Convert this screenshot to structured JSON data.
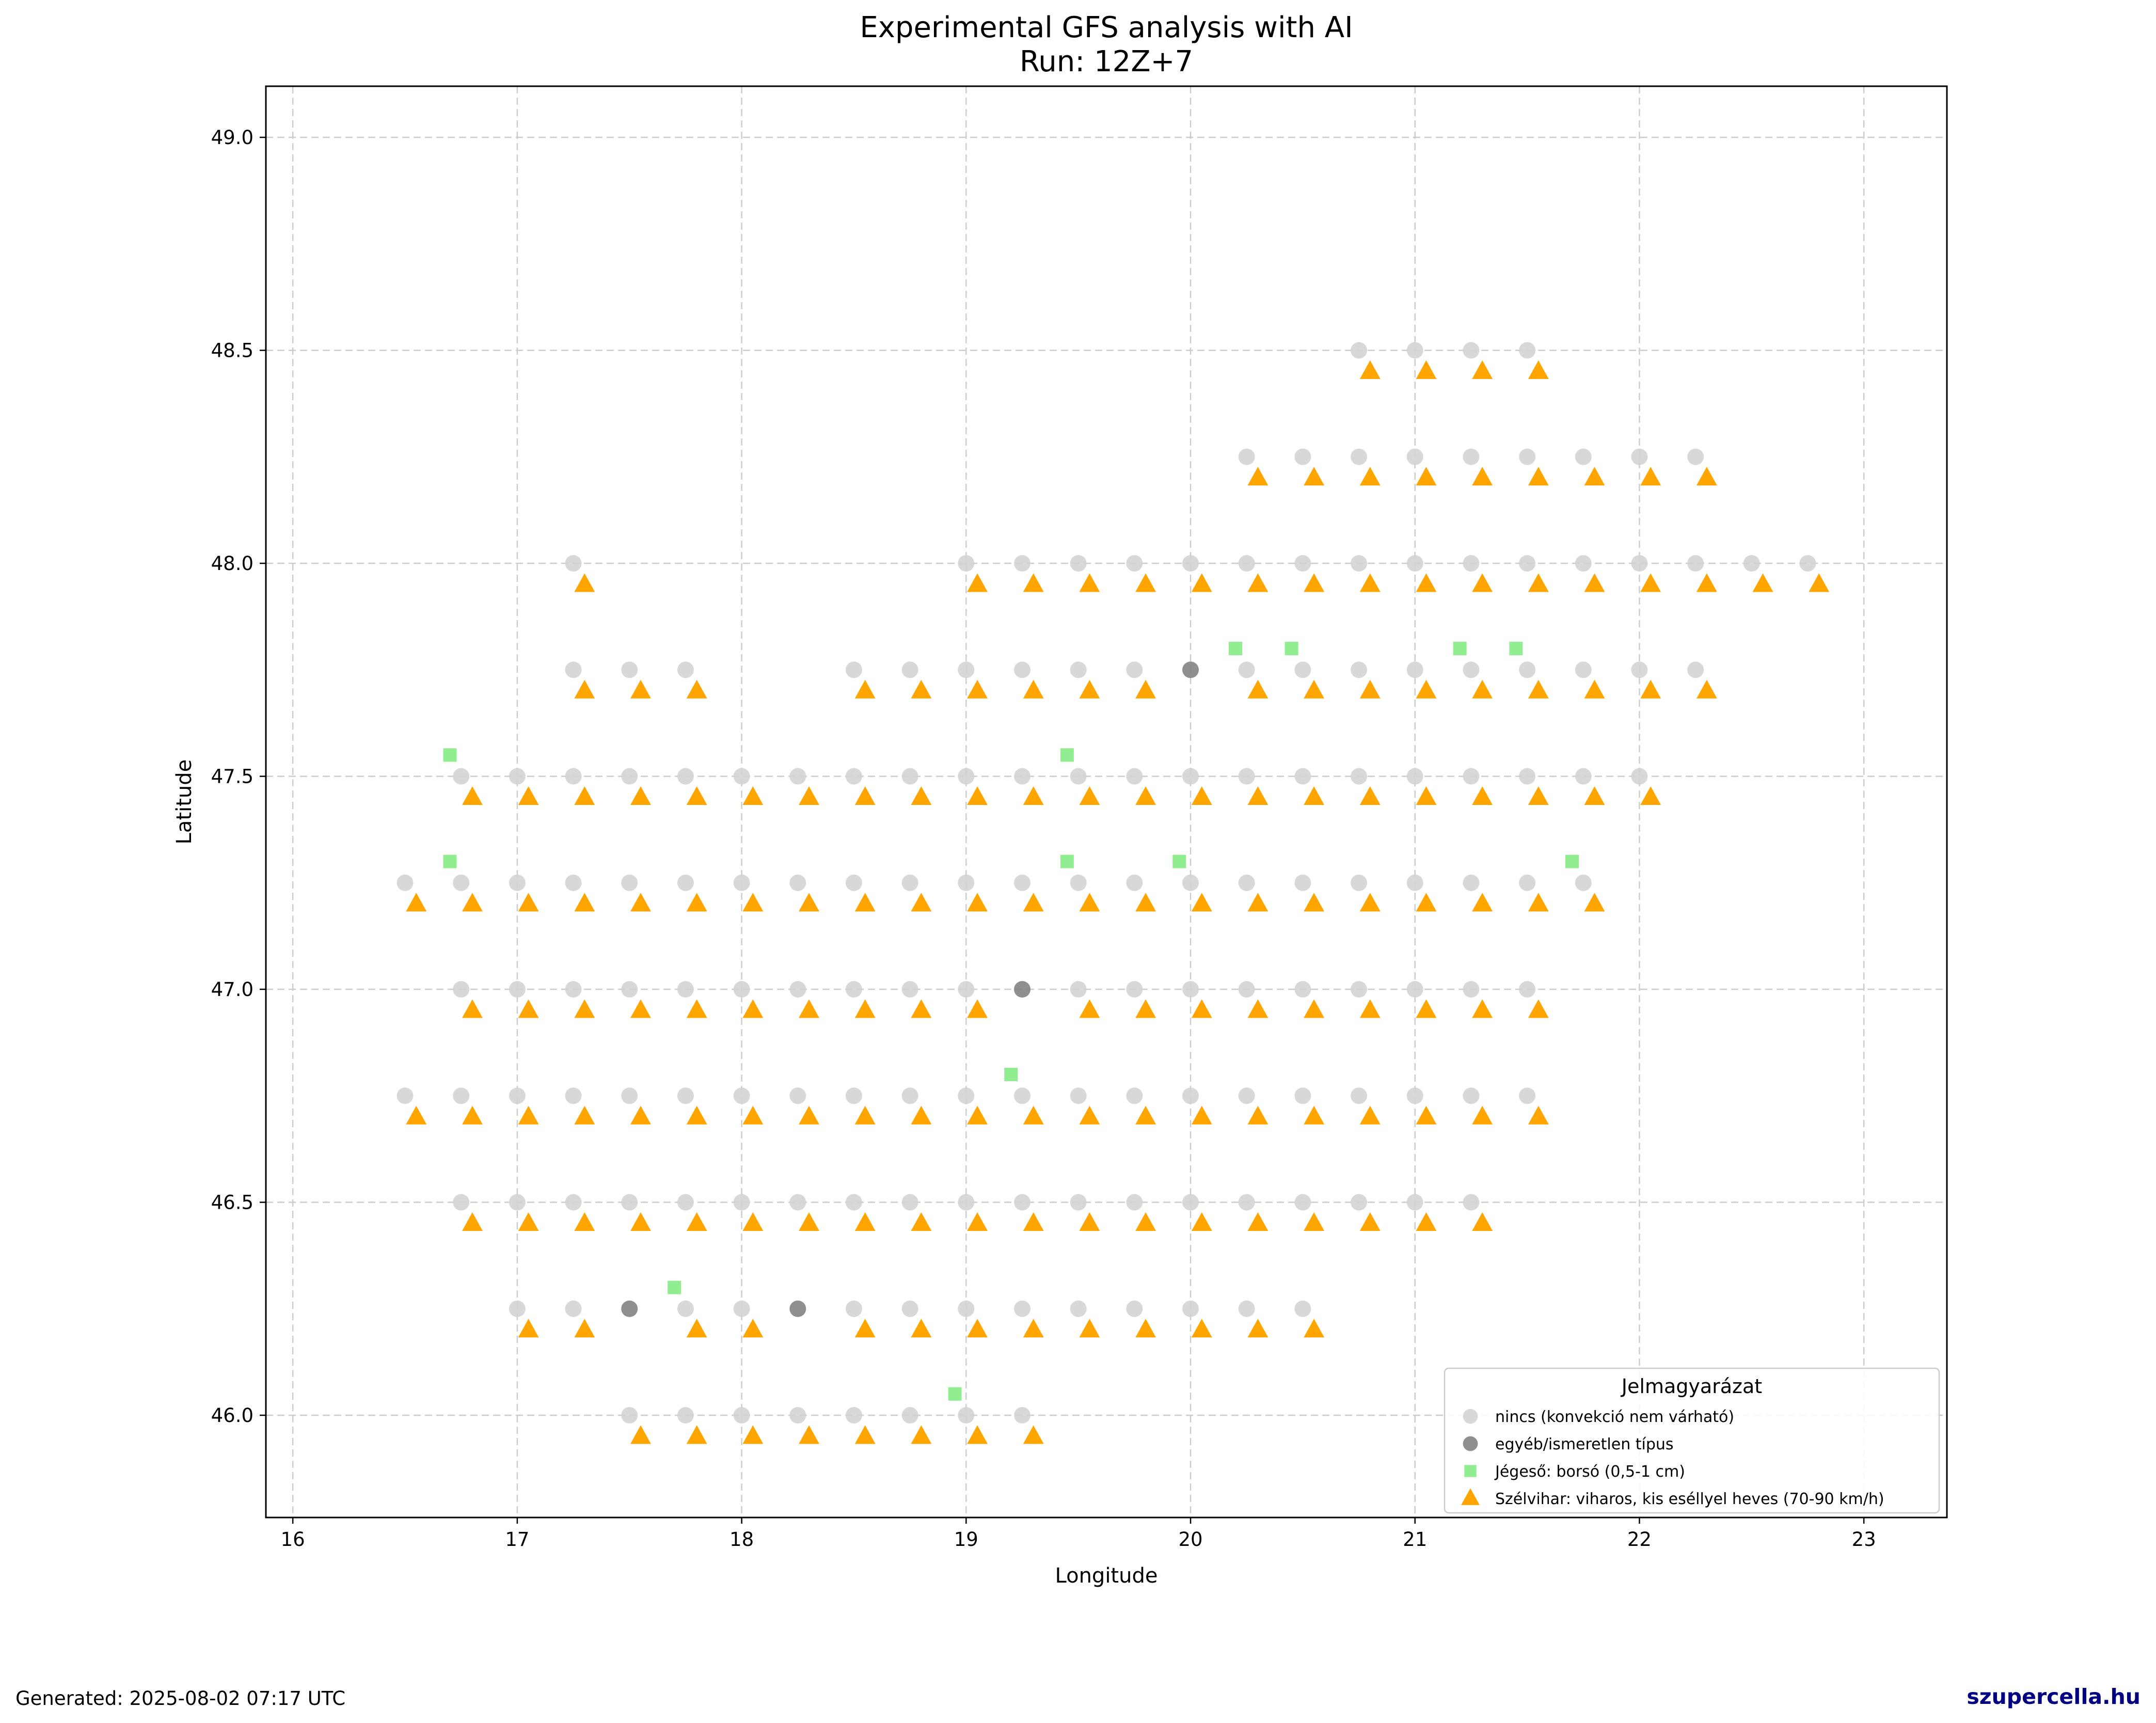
{
  "chart_data": {
    "type": "scatter",
    "title": "Experimental GFS analysis with AI",
    "subtitle": "Run: 12Z+7",
    "xlabel": "Longitude",
    "ylabel": "Latitude",
    "xlim": [
      15.88,
      23.37
    ],
    "ylim": [
      45.76,
      49.12
    ],
    "x_ticks": [
      "16",
      "17",
      "18",
      "19",
      "20",
      "21",
      "22",
      "23"
    ],
    "y_ticks": [
      "46.0",
      "46.5",
      "47.0",
      "47.5",
      "48.0",
      "48.5",
      "49.0"
    ],
    "grid": true,
    "legend": {
      "title": "Jelmagyarázat",
      "location": "lower right",
      "entries": [
        {
          "label": "nincs (konvekció nem várható)",
          "color": "#d3d3d3",
          "marker": "circle"
        },
        {
          "label": "egyéb/ismeretlen típus",
          "color": "#808080",
          "marker": "circle"
        },
        {
          "label": "Jégeső: borsó (0,5-1 cm)",
          "color": "#90ee90",
          "marker": "square"
        },
        {
          "label": "Szélvihar: viharos, kis eséllyel heves (70-90 km/h)",
          "color": "#ffa500",
          "marker": "triangle"
        }
      ]
    },
    "series": [
      {
        "name": "nincs (konvekció nem várható)",
        "color": "#d3d3d3",
        "marker": "circle",
        "rows": [
          {
            "lat": 48.5,
            "lons": [
              20.75,
              21.0,
              21.25,
              21.5
            ]
          },
          {
            "lat": 48.25,
            "lons": [
              20.25,
              20.5,
              20.75,
              21.0,
              21.25,
              21.5,
              21.75,
              22.0,
              22.25
            ]
          },
          {
            "lat": 48.0,
            "lons": [
              17.25,
              19.0,
              19.25,
              19.5,
              19.75,
              20.0,
              20.25,
              20.5,
              20.75,
              21.0,
              21.25,
              21.5,
              21.75,
              22.0,
              22.25,
              22.5,
              22.75
            ]
          },
          {
            "lat": 47.75,
            "lons": [
              17.25,
              17.5,
              17.75,
              18.5,
              18.75,
              19.0,
              19.25,
              19.5,
              19.75,
              20.25,
              20.5,
              20.75,
              21.0,
              21.25,
              21.5,
              21.75,
              22.0,
              22.25
            ]
          },
          {
            "lat": 47.5,
            "lons": [
              16.75,
              17.0,
              17.25,
              17.5,
              17.75,
              18.0,
              18.25,
              18.5,
              18.75,
              19.0,
              19.25,
              19.5,
              19.75,
              20.0,
              20.25,
              20.5,
              20.75,
              21.0,
              21.25,
              21.5,
              21.75,
              22.0
            ]
          },
          {
            "lat": 47.25,
            "lons": [
              16.5,
              16.75,
              17.0,
              17.25,
              17.5,
              17.75,
              18.0,
              18.25,
              18.5,
              18.75,
              19.0,
              19.25,
              19.5,
              19.75,
              20.0,
              20.25,
              20.5,
              20.75,
              21.0,
              21.25,
              21.5,
              21.75
            ]
          },
          {
            "lat": 47.0,
            "lons": [
              16.75,
              17.0,
              17.25,
              17.5,
              17.75,
              18.0,
              18.25,
              18.5,
              18.75,
              19.0,
              19.5,
              19.75,
              20.0,
              20.25,
              20.5,
              20.75,
              21.0,
              21.25,
              21.5
            ]
          },
          {
            "lat": 46.75,
            "lons": [
              16.5,
              16.75,
              17.0,
              17.25,
              17.5,
              17.75,
              18.0,
              18.25,
              18.5,
              18.75,
              19.0,
              19.25,
              19.5,
              19.75,
              20.0,
              20.25,
              20.5,
              20.75,
              21.0,
              21.25,
              21.5
            ]
          },
          {
            "lat": 46.5,
            "lons": [
              16.75,
              17.0,
              17.25,
              17.5,
              17.75,
              18.0,
              18.25,
              18.5,
              18.75,
              19.0,
              19.25,
              19.5,
              19.75,
              20.0,
              20.25,
              20.5,
              20.75,
              21.0,
              21.25
            ]
          },
          {
            "lat": 46.25,
            "lons": [
              17.0,
              17.25,
              17.75,
              18.0,
              18.5,
              18.75,
              19.0,
              19.25,
              19.5,
              19.75,
              20.0,
              20.25,
              20.5
            ]
          },
          {
            "lat": 46.0,
            "lons": [
              17.5,
              17.75,
              18.0,
              18.25,
              18.5,
              18.75,
              19.0,
              19.25
            ]
          }
        ]
      },
      {
        "name": "egyéb/ismeretlen típus",
        "color": "#808080",
        "marker": "circle",
        "points": [
          [
            20.0,
            47.75
          ],
          [
            19.25,
            47.0
          ],
          [
            17.5,
            46.25
          ],
          [
            18.25,
            46.25
          ]
        ]
      },
      {
        "name": "Jégeső: borsó (0,5-1 cm)",
        "color": "#90ee90",
        "marker": "square",
        "points": [
          [
            16.7,
            47.55
          ],
          [
            19.45,
            47.55
          ],
          [
            20.2,
            47.8
          ],
          [
            20.45,
            47.8
          ],
          [
            21.2,
            47.8
          ],
          [
            21.45,
            47.8
          ],
          [
            16.7,
            47.3
          ],
          [
            19.45,
            47.3
          ],
          [
            19.95,
            47.3
          ],
          [
            21.7,
            47.3
          ],
          [
            19.2,
            46.8
          ],
          [
            17.7,
            46.3
          ],
          [
            18.95,
            46.05
          ]
        ]
      },
      {
        "name": "Szélvihar: viharos, kis eséllyel heves (70-90 km/h)",
        "color": "#ffa500",
        "marker": "triangle",
        "rows": [
          {
            "lat": 48.45,
            "lons": [
              20.8,
              21.05,
              21.3,
              21.55
            ]
          },
          {
            "lat": 48.2,
            "lons": [
              20.3,
              20.55,
              20.8,
              21.05,
              21.3,
              21.55,
              21.8,
              22.05,
              22.3
            ]
          },
          {
            "lat": 47.95,
            "lons": [
              17.3,
              19.05,
              19.3,
              19.55,
              19.8,
              20.05,
              20.3,
              20.55,
              20.8,
              21.05,
              21.3,
              21.55,
              21.8,
              22.05,
              22.3,
              22.55,
              22.8
            ]
          },
          {
            "lat": 47.7,
            "lons": [
              17.3,
              17.55,
              17.8,
              18.55,
              18.8,
              19.05,
              19.3,
              19.55,
              19.8,
              20.3,
              20.55,
              20.8,
              21.05,
              21.3,
              21.55,
              21.8,
              22.05,
              22.3
            ]
          },
          {
            "lat": 47.45,
            "lons": [
              16.8,
              17.05,
              17.3,
              17.55,
              17.8,
              18.05,
              18.3,
              18.55,
              18.8,
              19.05,
              19.3,
              19.55,
              19.8,
              20.05,
              20.3,
              20.55,
              20.8,
              21.05,
              21.3,
              21.55,
              21.8,
              22.05
            ]
          },
          {
            "lat": 47.2,
            "lons": [
              16.55,
              16.8,
              17.05,
              17.3,
              17.55,
              17.8,
              18.05,
              18.3,
              18.55,
              18.8,
              19.05,
              19.3,
              19.55,
              19.8,
              20.05,
              20.3,
              20.55,
              20.8,
              21.05,
              21.3,
              21.55,
              21.8
            ]
          },
          {
            "lat": 46.95,
            "lons": [
              16.8,
              17.05,
              17.3,
              17.55,
              17.8,
              18.05,
              18.3,
              18.55,
              18.8,
              19.05,
              19.55,
              19.8,
              20.05,
              20.3,
              20.55,
              20.8,
              21.05,
              21.3,
              21.55
            ]
          },
          {
            "lat": 46.7,
            "lons": [
              16.55,
              16.8,
              17.05,
              17.3,
              17.55,
              17.8,
              18.05,
              18.3,
              18.55,
              18.8,
              19.05,
              19.3,
              19.55,
              19.8,
              20.05,
              20.3,
              20.55,
              20.8,
              21.05,
              21.3,
              21.55
            ]
          },
          {
            "lat": 46.45,
            "lons": [
              16.8,
              17.05,
              17.3,
              17.55,
              17.8,
              18.05,
              18.3,
              18.55,
              18.8,
              19.05,
              19.3,
              19.55,
              19.8,
              20.05,
              20.3,
              20.55,
              20.8,
              21.05,
              21.3
            ]
          },
          {
            "lat": 46.2,
            "lons": [
              17.05,
              17.3,
              17.8,
              18.05,
              18.55,
              18.8,
              19.05,
              19.3,
              19.55,
              19.8,
              20.05,
              20.3,
              20.55
            ]
          },
          {
            "lat": 45.95,
            "lons": [
              17.55,
              17.8,
              18.05,
              18.3,
              18.55,
              18.8,
              19.05,
              19.3
            ]
          }
        ]
      }
    ]
  },
  "footer": {
    "generated": "Generated: 2025-08-02 07:17 UTC",
    "brand": "szupercella.hu"
  }
}
